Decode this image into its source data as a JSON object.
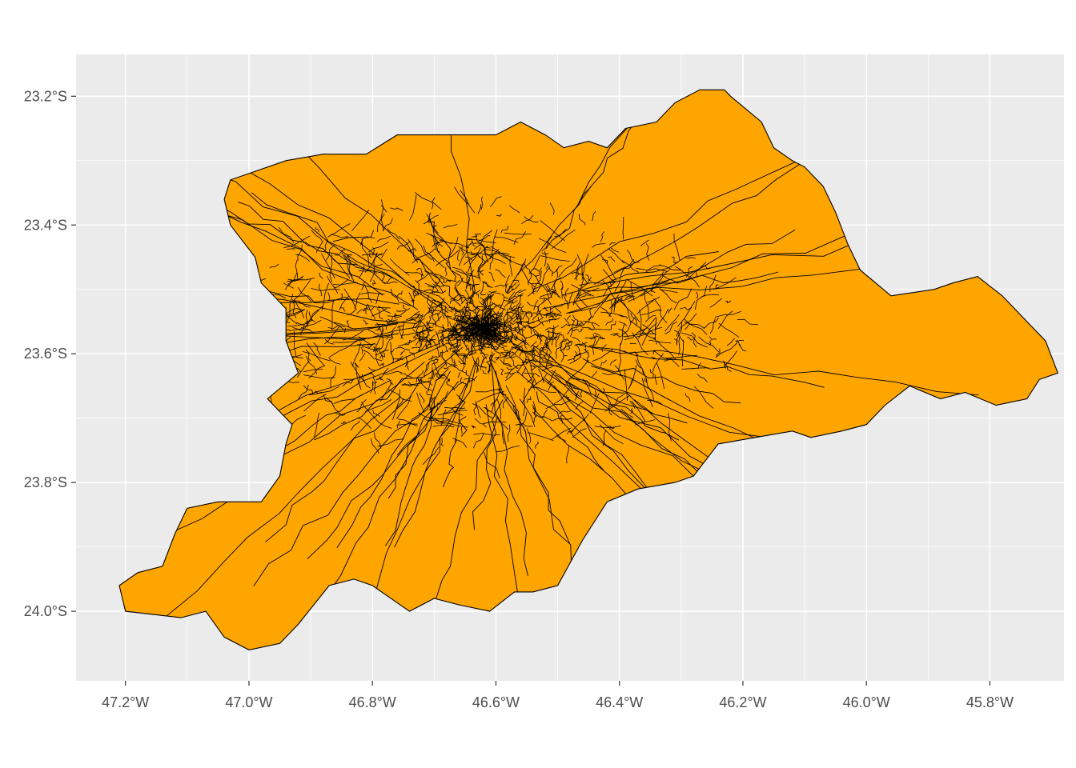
{
  "chart_data": {
    "type": "map",
    "region_fill": "#FFA500",
    "border_color": "#000000",
    "panel_background": "#EBEBEB",
    "grid_color": "#FFFFFF",
    "grid": true,
    "xlim": [
      -47.28,
      -45.68
    ],
    "ylim": [
      -24.108,
      -23.135
    ],
    "x_ticks": [
      {
        "value": -47.2,
        "label": "47.2°W"
      },
      {
        "value": -47.0,
        "label": "47.0°W"
      },
      {
        "value": -46.8,
        "label": "46.8°W"
      },
      {
        "value": -46.6,
        "label": "46.6°W"
      },
      {
        "value": -46.4,
        "label": "46.4°W"
      },
      {
        "value": -46.2,
        "label": "46.2°W"
      },
      {
        "value": -46.0,
        "label": "46.0°W"
      },
      {
        "value": -45.8,
        "label": "45.8°W"
      }
    ],
    "y_ticks": [
      {
        "value": -23.2,
        "label": "23.2°S"
      },
      {
        "value": -23.4,
        "label": "23.4°S"
      },
      {
        "value": -23.6,
        "label": "23.6°S"
      },
      {
        "value": -23.8,
        "label": "23.8°S"
      },
      {
        "value": -24.0,
        "label": "24.0°S"
      }
    ],
    "outline": [
      [
        -46.27,
        -23.19
      ],
      [
        -46.23,
        -23.19
      ],
      [
        -46.22,
        -23.2
      ],
      [
        -46.17,
        -23.24
      ],
      [
        -46.15,
        -23.28
      ],
      [
        -46.12,
        -23.3
      ],
      [
        -46.1,
        -23.31
      ],
      [
        -46.07,
        -23.34
      ],
      [
        -46.05,
        -23.38
      ],
      [
        -46.03,
        -23.43
      ],
      [
        -46.01,
        -23.47
      ],
      [
        -45.96,
        -23.51
      ],
      [
        -45.89,
        -23.5
      ],
      [
        -45.86,
        -23.49
      ],
      [
        -45.82,
        -23.48
      ],
      [
        -45.78,
        -23.51
      ],
      [
        -45.74,
        -23.55
      ],
      [
        -45.71,
        -23.58
      ],
      [
        -45.69,
        -23.63
      ],
      [
        -45.72,
        -23.64
      ],
      [
        -45.74,
        -23.67
      ],
      [
        -45.79,
        -23.68
      ],
      [
        -45.84,
        -23.66
      ],
      [
        -45.88,
        -23.67
      ],
      [
        -45.93,
        -23.65
      ],
      [
        -45.97,
        -23.68
      ],
      [
        -46.0,
        -23.71
      ],
      [
        -46.04,
        -23.72
      ],
      [
        -46.09,
        -23.73
      ],
      [
        -46.12,
        -23.72
      ],
      [
        -46.18,
        -23.73
      ],
      [
        -46.24,
        -23.74
      ],
      [
        -46.28,
        -23.79
      ],
      [
        -46.31,
        -23.8
      ],
      [
        -46.37,
        -23.81
      ],
      [
        -46.42,
        -23.83
      ],
      [
        -46.46,
        -23.89
      ],
      [
        -46.5,
        -23.96
      ],
      [
        -46.54,
        -23.97
      ],
      [
        -46.57,
        -23.97
      ],
      [
        -46.61,
        -24.0
      ],
      [
        -46.66,
        -23.99
      ],
      [
        -46.7,
        -23.98
      ],
      [
        -46.74,
        -24.0
      ],
      [
        -46.8,
        -23.96
      ],
      [
        -46.83,
        -23.95
      ],
      [
        -46.87,
        -23.96
      ],
      [
        -46.92,
        -24.02
      ],
      [
        -46.95,
        -24.05
      ],
      [
        -47.0,
        -24.06
      ],
      [
        -47.04,
        -24.04
      ],
      [
        -47.07,
        -24.0
      ],
      [
        -47.11,
        -24.01
      ],
      [
        -47.2,
        -24.0
      ],
      [
        -47.21,
        -23.96
      ],
      [
        -47.18,
        -23.94
      ],
      [
        -47.14,
        -23.93
      ],
      [
        -47.12,
        -23.88
      ],
      [
        -47.1,
        -23.84
      ],
      [
        -47.05,
        -23.83
      ],
      [
        -46.98,
        -23.83
      ],
      [
        -46.95,
        -23.79
      ],
      [
        -46.94,
        -23.74
      ],
      [
        -46.93,
        -23.71
      ],
      [
        -46.97,
        -23.67
      ],
      [
        -46.92,
        -23.63
      ],
      [
        -46.94,
        -23.58
      ],
      [
        -46.94,
        -23.53
      ],
      [
        -46.98,
        -23.49
      ],
      [
        -46.99,
        -23.45
      ],
      [
        -47.03,
        -23.4
      ],
      [
        -47.04,
        -23.36
      ],
      [
        -47.03,
        -23.33
      ],
      [
        -47.0,
        -23.32
      ],
      [
        -46.94,
        -23.3
      ],
      [
        -46.88,
        -23.29
      ],
      [
        -46.84,
        -23.29
      ],
      [
        -46.81,
        -23.29
      ],
      [
        -46.76,
        -23.26
      ],
      [
        -46.7,
        -23.26
      ],
      [
        -46.63,
        -23.26
      ],
      [
        -46.6,
        -23.26
      ],
      [
        -46.56,
        -23.24
      ],
      [
        -46.52,
        -23.26
      ],
      [
        -46.49,
        -23.28
      ],
      [
        -46.45,
        -23.27
      ],
      [
        -46.42,
        -23.28
      ],
      [
        -46.39,
        -23.25
      ],
      [
        -46.34,
        -23.24
      ],
      [
        -46.31,
        -23.21
      ]
    ]
  }
}
